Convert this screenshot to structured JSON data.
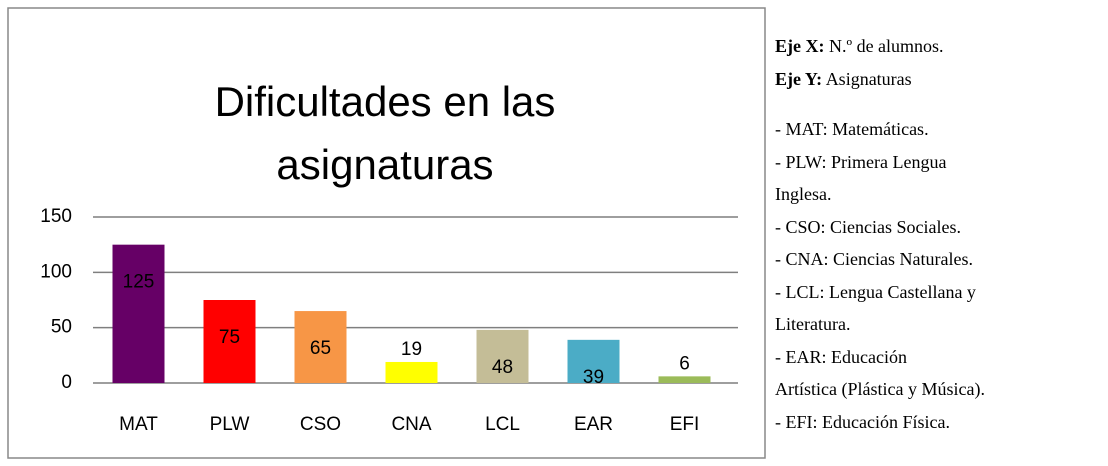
{
  "chart_data": {
    "type": "bar",
    "title": [
      "Dificultades en las",
      "asignaturas"
    ],
    "categories": [
      "MAT",
      "PLW",
      "CSO",
      "CNA",
      "LCL",
      "EAR",
      "EFI"
    ],
    "values": [
      125,
      75,
      65,
      19,
      48,
      39,
      6
    ],
    "colors": [
      "#660066",
      "#ff0000",
      "#f79646",
      "#ffff00",
      "#c4bd97",
      "#4bacc6",
      "#9bbb59"
    ],
    "ylim": [
      0,
      150
    ],
    "yticks": [
      0,
      50,
      100,
      150
    ],
    "grid": true
  },
  "notes": {
    "axes": [
      {
        "label": "Eje X:",
        "text": "N.º de alumnos."
      },
      {
        "label": "Eje Y:",
        "text": "Asignaturas"
      }
    ],
    "items": [
      [
        "- MAT: Matemáticas."
      ],
      [
        "- PLW: Primera Lengua",
        "Inglesa."
      ],
      [
        "- CSO: Ciencias Sociales."
      ],
      [
        "- CNA: Ciencias Naturales."
      ],
      [
        "- LCL: Lengua Castellana y",
        "Literatura."
      ],
      [
        "- EAR: Educación",
        "Artística (Plástica y Música)."
      ],
      [
        "- EFI: Educación Física."
      ]
    ]
  }
}
